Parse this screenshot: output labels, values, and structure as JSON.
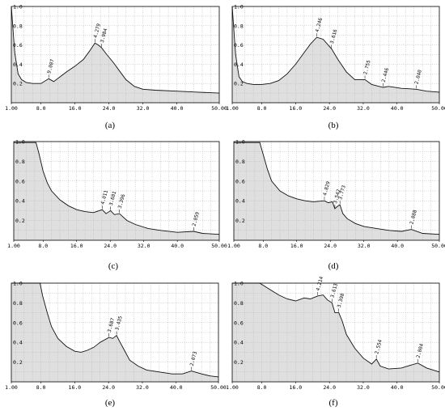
{
  "chart_data": [
    {
      "type": "area",
      "panel_label": "(a)",
      "xlim": [
        1.0,
        50.0
      ],
      "ylim": [
        0.0,
        1.0
      ],
      "xticks": [
        "1.00",
        "8.0",
        "16.0",
        "24.0",
        "32.0",
        "40.0",
        "50.00"
      ],
      "yticks": [
        "0.2",
        "0.4",
        "0.6",
        "0.8",
        "1.0"
      ],
      "grid": true,
      "annotations": [
        {
          "label": "9.007",
          "x": 9.8,
          "y": 0.25
        },
        {
          "label": "4.279",
          "x": 20.7,
          "y": 0.62
        },
        {
          "label": "3.984",
          "x": 22.3,
          "y": 0.57
        }
      ],
      "x": [
        1.0,
        1.8,
        2.6,
        3.4,
        4.5,
        6.0,
        8.0,
        9.8,
        11.0,
        12.5,
        14.0,
        16.0,
        18.0,
        19.5,
        20.7,
        21.5,
        22.3,
        23.5,
        25.0,
        26.5,
        28.0,
        30.0,
        32.0,
        35.0,
        40.0,
        45.0,
        50.0
      ],
      "y": [
        1.0,
        0.52,
        0.3,
        0.24,
        0.21,
        0.2,
        0.2,
        0.25,
        0.22,
        0.27,
        0.32,
        0.38,
        0.45,
        0.54,
        0.62,
        0.6,
        0.57,
        0.5,
        0.42,
        0.33,
        0.24,
        0.17,
        0.14,
        0.13,
        0.12,
        0.11,
        0.1
      ]
    },
    {
      "type": "area",
      "panel_label": "(b)",
      "xlim": [
        1.0,
        50.0
      ],
      "ylim": [
        0.0,
        1.0
      ],
      "xticks": [
        "1.00",
        "8.0",
        "16.0",
        "24.0",
        "32.0",
        "40.0",
        "50.00"
      ],
      "yticks": [
        "0.2",
        "0.4",
        "0.6",
        "0.8",
        "1.0"
      ],
      "grid": true,
      "annotations": [
        {
          "label": "4.246",
          "x": 21.0,
          "y": 0.68
        },
        {
          "label": "3.616",
          "x": 24.5,
          "y": 0.56
        },
        {
          "label": "2.755",
          "x": 32.4,
          "y": 0.24
        },
        {
          "label": "2.446",
          "x": 36.7,
          "y": 0.16
        },
        {
          "label": "2.040",
          "x": 44.5,
          "y": 0.14
        }
      ],
      "x": [
        1.0,
        1.8,
        2.6,
        3.4,
        4.5,
        6.0,
        8.0,
        10.0,
        12.0,
        14.0,
        16.0,
        18.0,
        19.5,
        21.0,
        22.5,
        24.5,
        26.0,
        28.0,
        30.0,
        32.4,
        34.0,
        36.7,
        38.0,
        41.0,
        44.5,
        47.0,
        50.0
      ],
      "y": [
        1.0,
        0.5,
        0.27,
        0.22,
        0.2,
        0.19,
        0.19,
        0.2,
        0.23,
        0.3,
        0.4,
        0.52,
        0.61,
        0.68,
        0.66,
        0.56,
        0.45,
        0.32,
        0.24,
        0.24,
        0.19,
        0.16,
        0.17,
        0.15,
        0.14,
        0.12,
        0.11
      ]
    },
    {
      "type": "area",
      "panel_label": "(c)",
      "xlim": [
        1.0,
        50.0
      ],
      "ylim": [
        0.0,
        1.0
      ],
      "xticks": [
        "1.00",
        "8.0",
        "16.0",
        "24.0",
        "32.0",
        "40.0",
        "50.00"
      ],
      "yticks": [
        "0.2",
        "0.4",
        "0.6",
        "0.8",
        "1.0"
      ],
      "grid": true,
      "annotations": [
        {
          "label": "4.011",
          "x": 22.1,
          "y": 0.31
        },
        {
          "label": "3.681",
          "x": 24.1,
          "y": 0.3
        },
        {
          "label": "3.396",
          "x": 26.2,
          "y": 0.27
        },
        {
          "label": "2.059",
          "x": 43.9,
          "y": 0.09
        }
      ],
      "x": [
        1.0,
        5.0,
        6.3,
        7.0,
        8.0,
        9.0,
        10.0,
        12.0,
        14.0,
        16.0,
        18.0,
        20.0,
        22.1,
        23.0,
        24.1,
        25.0,
        26.2,
        28.0,
        30.0,
        33.0,
        36.0,
        40.0,
        43.9,
        46.0,
        50.0
      ],
      "y": [
        0.99,
        0.99,
        0.99,
        0.88,
        0.7,
        0.58,
        0.5,
        0.41,
        0.35,
        0.31,
        0.29,
        0.28,
        0.31,
        0.27,
        0.3,
        0.26,
        0.27,
        0.2,
        0.16,
        0.12,
        0.1,
        0.08,
        0.09,
        0.07,
        0.06
      ]
    },
    {
      "type": "area",
      "panel_label": "(d)",
      "xlim": [
        1.0,
        50.0
      ],
      "ylim": [
        0.0,
        1.0
      ],
      "xticks": [
        "1.00",
        "8.0",
        "16.0",
        "24.0",
        "32.0",
        "40.0",
        "50.00"
      ],
      "yticks": [
        "0.2",
        "0.4",
        "0.6",
        "0.8",
        "1.0"
      ],
      "grid": true,
      "annotations": [
        {
          "label": "4.829",
          "x": 22.6,
          "y": 0.4
        },
        {
          "label": "3.542",
          "x": 25.1,
          "y": 0.32
        },
        {
          "label": "3.773",
          "x": 26.3,
          "y": 0.36
        },
        {
          "label": "2.088",
          "x": 43.3,
          "y": 0.11
        }
      ],
      "x": [
        1.0,
        5.0,
        7.2,
        8.0,
        9.0,
        10.0,
        12.0,
        14.0,
        16.0,
        18.0,
        20.0,
        22.6,
        23.5,
        24.5,
        25.1,
        25.6,
        26.3,
        27.0,
        28.0,
        30.0,
        32.0,
        35.0,
        38.0,
        41.0,
        43.3,
        46.0,
        50.0
      ],
      "y": [
        0.99,
        0.99,
        0.99,
        0.87,
        0.72,
        0.6,
        0.5,
        0.45,
        0.42,
        0.4,
        0.39,
        0.4,
        0.38,
        0.39,
        0.32,
        0.34,
        0.36,
        0.27,
        0.22,
        0.17,
        0.14,
        0.12,
        0.1,
        0.09,
        0.11,
        0.07,
        0.06
      ]
    },
    {
      "type": "area",
      "panel_label": "(e)",
      "xlim": [
        1.0,
        50.0
      ],
      "ylim": [
        0.0,
        1.0
      ],
      "xticks": [
        "1.00",
        "8.0",
        "16.0",
        "24.0",
        "32.0",
        "40.0",
        "50.00"
      ],
      "yticks": [
        "0.2",
        "0.4",
        "0.6",
        "0.8",
        "1.0"
      ],
      "grid": true,
      "annotations": [
        {
          "label": "3.687",
          "x": 24.1,
          "y": 0.45
        },
        {
          "label": "3.435",
          "x": 25.9,
          "y": 0.47
        },
        {
          "label": "2.073",
          "x": 43.6,
          "y": 0.11
        }
      ],
      "x": [
        1.0,
        5.0,
        7.8,
        8.4,
        9.5,
        10.5,
        12.0,
        14.0,
        16.0,
        17.5,
        19.0,
        20.5,
        22.0,
        24.1,
        25.0,
        25.9,
        26.5,
        27.5,
        29.0,
        31.0,
        33.0,
        36.0,
        39.0,
        41.5,
        43.6,
        46.0,
        48.0,
        50.0
      ],
      "y": [
        1.0,
        1.0,
        1.0,
        0.87,
        0.7,
        0.56,
        0.44,
        0.36,
        0.31,
        0.3,
        0.32,
        0.35,
        0.4,
        0.45,
        0.44,
        0.47,
        0.42,
        0.34,
        0.22,
        0.16,
        0.12,
        0.1,
        0.08,
        0.08,
        0.11,
        0.08,
        0.06,
        0.05
      ]
    },
    {
      "type": "area",
      "panel_label": "(f)",
      "xlim": [
        1.0,
        50.0
      ],
      "ylim": [
        0.0,
        1.0
      ],
      "xticks": [
        "1.00",
        "8.0",
        "16.0",
        "24.0",
        "32.0",
        "40.0",
        "50.00"
      ],
      "yticks": [
        "0.2",
        "0.4",
        "0.6",
        "0.8",
        "1.0"
      ],
      "grid": true,
      "annotations": [
        {
          "label": "4.214",
          "x": 21.2,
          "y": 0.87
        },
        {
          "label": "3.613",
          "x": 24.6,
          "y": 0.8
        },
        {
          "label": "3.398",
          "x": 26.2,
          "y": 0.7
        },
        {
          "label": "2.554",
          "x": 35.1,
          "y": 0.23
        },
        {
          "label": "2.004",
          "x": 44.9,
          "y": 0.19
        }
      ],
      "x": [
        1.0,
        5.0,
        7.5,
        9.0,
        10.5,
        12.0,
        14.0,
        16.0,
        18.0,
        19.5,
        21.2,
        22.5,
        23.5,
        24.6,
        25.3,
        26.2,
        27.0,
        28.0,
        30.0,
        32.0,
        34.0,
        35.1,
        36.0,
        38.0,
        41.0,
        44.9,
        47.0,
        50.0
      ],
      "y": [
        1.0,
        1.0,
        1.0,
        0.96,
        0.92,
        0.88,
        0.84,
        0.82,
        0.85,
        0.84,
        0.87,
        0.88,
        0.83,
        0.8,
        0.7,
        0.7,
        0.62,
        0.48,
        0.34,
        0.24,
        0.18,
        0.23,
        0.16,
        0.13,
        0.14,
        0.19,
        0.14,
        0.1
      ]
    }
  ]
}
